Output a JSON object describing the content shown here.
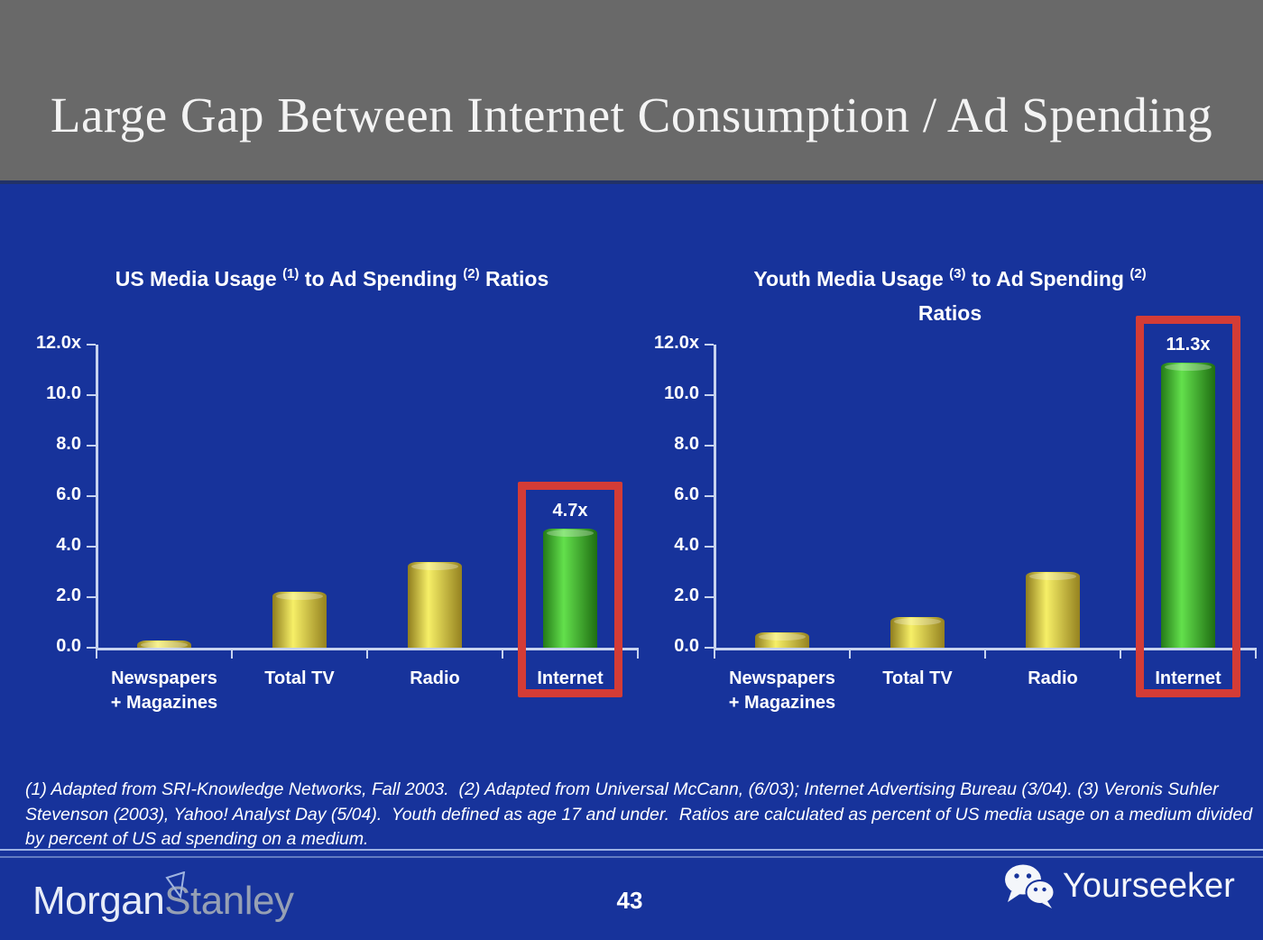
{
  "colors": {
    "background_blue": "#17339B",
    "header_gray": "#696969",
    "axis_line": "#C7D3EF",
    "highlight_red": "#D43C36",
    "text_white": "#FFFFFF",
    "bar_yellow": [
      "#8F7D1E",
      "#F6EF67",
      "#95821F"
    ],
    "bar_green": [
      "#247A17",
      "#63E04C",
      "#1F6E12"
    ]
  },
  "header": {
    "title": "Large Gap Between Internet Consumption / Ad Spending"
  },
  "footnote": {
    "lines": [
      "(1) Adapted from SRI-Knowledge Networks, Fall 2003.  (2) Adapted from Universal McCann, (6/03); Internet Advertising Bureau (3/04). (3) Veronis Suhler",
      "Stevenson (2003), Yahoo! Analyst Day (5/04).  Youth defined as age 17 and under.  Ratios are calculated as percent of US media usage on a medium divided",
      "by percent of US ad spending on a medium."
    ]
  },
  "footer": {
    "brand": {
      "morgan": "Morgan",
      "stanley": "Stanley"
    },
    "page_number": "43",
    "watermark": "Yourseeker",
    "icons": {
      "wechat": "wechat-icon",
      "logo_mark": "triangle-pennant-icon"
    }
  },
  "chart_data": [
    {
      "type": "bar",
      "title": "US Media Usage (1) to Ad Spending (2) Ratios",
      "title_lines": [
        [
          {
            "t": "US Media Usage "
          },
          {
            "sup": "(1)"
          },
          {
            "t": " to Ad Spending "
          },
          {
            "sup": "(2)"
          },
          {
            "t": " Ratios"
          }
        ]
      ],
      "categories": [
        "Newspapers\n+ Magazines",
        "Total TV",
        "Radio",
        "Internet"
      ],
      "values": [
        0.3,
        2.2,
        3.4,
        4.7
      ],
      "bar_color": "bar_yellow",
      "highlight": {
        "index": 3,
        "label": "4.7x",
        "color": "bar_green"
      },
      "ylabel_ticks": [
        "12.0x",
        "10.0",
        "8.0",
        "6.0",
        "4.0",
        "2.0",
        "0.0"
      ],
      "ylim": [
        0,
        12
      ],
      "grid": false,
      "legend": "none"
    },
    {
      "type": "bar",
      "title": "Youth Media Usage (3) to Ad Spending (2) Ratios",
      "title_lines": [
        [
          {
            "t": "Youth Media Usage "
          },
          {
            "sup": "(3)"
          },
          {
            "t": " to Ad Spending "
          },
          {
            "sup": "(2)"
          }
        ],
        [
          {
            "t": "Ratios"
          }
        ]
      ],
      "categories": [
        "Newspapers\n+ Magazines",
        "Total TV",
        "Radio",
        "Internet"
      ],
      "values": [
        0.6,
        1.2,
        3.0,
        11.3
      ],
      "bar_color": "bar_yellow",
      "highlight": {
        "index": 3,
        "label": "11.3x",
        "color": "bar_green"
      },
      "ylabel_ticks": [
        "12.0x",
        "10.0",
        "8.0",
        "6.0",
        "4.0",
        "2.0",
        "0.0"
      ],
      "ylim": [
        0,
        12
      ],
      "grid": false,
      "legend": "none"
    }
  ]
}
